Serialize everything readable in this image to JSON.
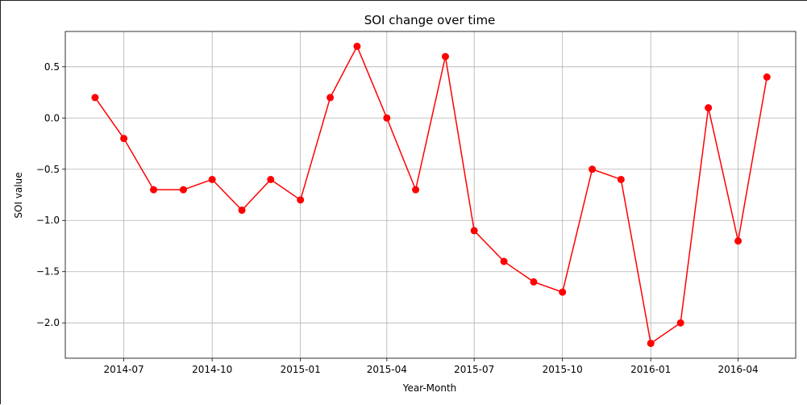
{
  "chart_data": {
    "type": "line",
    "title": "SOI change over time",
    "xlabel": "Year-Month",
    "ylabel": "SOI value",
    "x": [
      "2014-06",
      "2014-07",
      "2014-08",
      "2014-09",
      "2014-10",
      "2014-11",
      "2014-12",
      "2015-01",
      "2015-02",
      "2015-03",
      "2015-04",
      "2015-05",
      "2015-06",
      "2015-07",
      "2015-08",
      "2015-09",
      "2015-10",
      "2015-11",
      "2015-12",
      "2016-01",
      "2016-02",
      "2016-03",
      "2016-04",
      "2016-05"
    ],
    "series": [
      {
        "values": [
          0.2,
          -0.2,
          -0.7,
          -0.7,
          -0.6,
          -0.9,
          -0.6,
          -0.8,
          0.2,
          0.7,
          0.0,
          -0.7,
          0.6,
          -1.1,
          -1.4,
          -1.6,
          -1.7,
          -0.5,
          -0.6,
          -2.2,
          -2.0,
          0.1,
          -1.2,
          0.4
        ],
        "color": "#ff0000",
        "marker": "circle"
      }
    ],
    "x_ticks": [
      "2014-07",
      "2014-10",
      "2015-01",
      "2015-04",
      "2015-07",
      "2015-10",
      "2016-01",
      "2016-04"
    ],
    "y_ticks": [
      0.5,
      0.0,
      -0.5,
      -1.0,
      -1.5,
      -2.0
    ],
    "y_tick_labels": [
      "0.5",
      "0.0",
      "−0.5",
      "−1.0",
      "−1.5",
      "−2.0"
    ],
    "ylim": [
      -2.345,
      0.845
    ],
    "xlim": [
      "2014-05-01",
      "2016-05-31"
    ],
    "grid": true
  }
}
